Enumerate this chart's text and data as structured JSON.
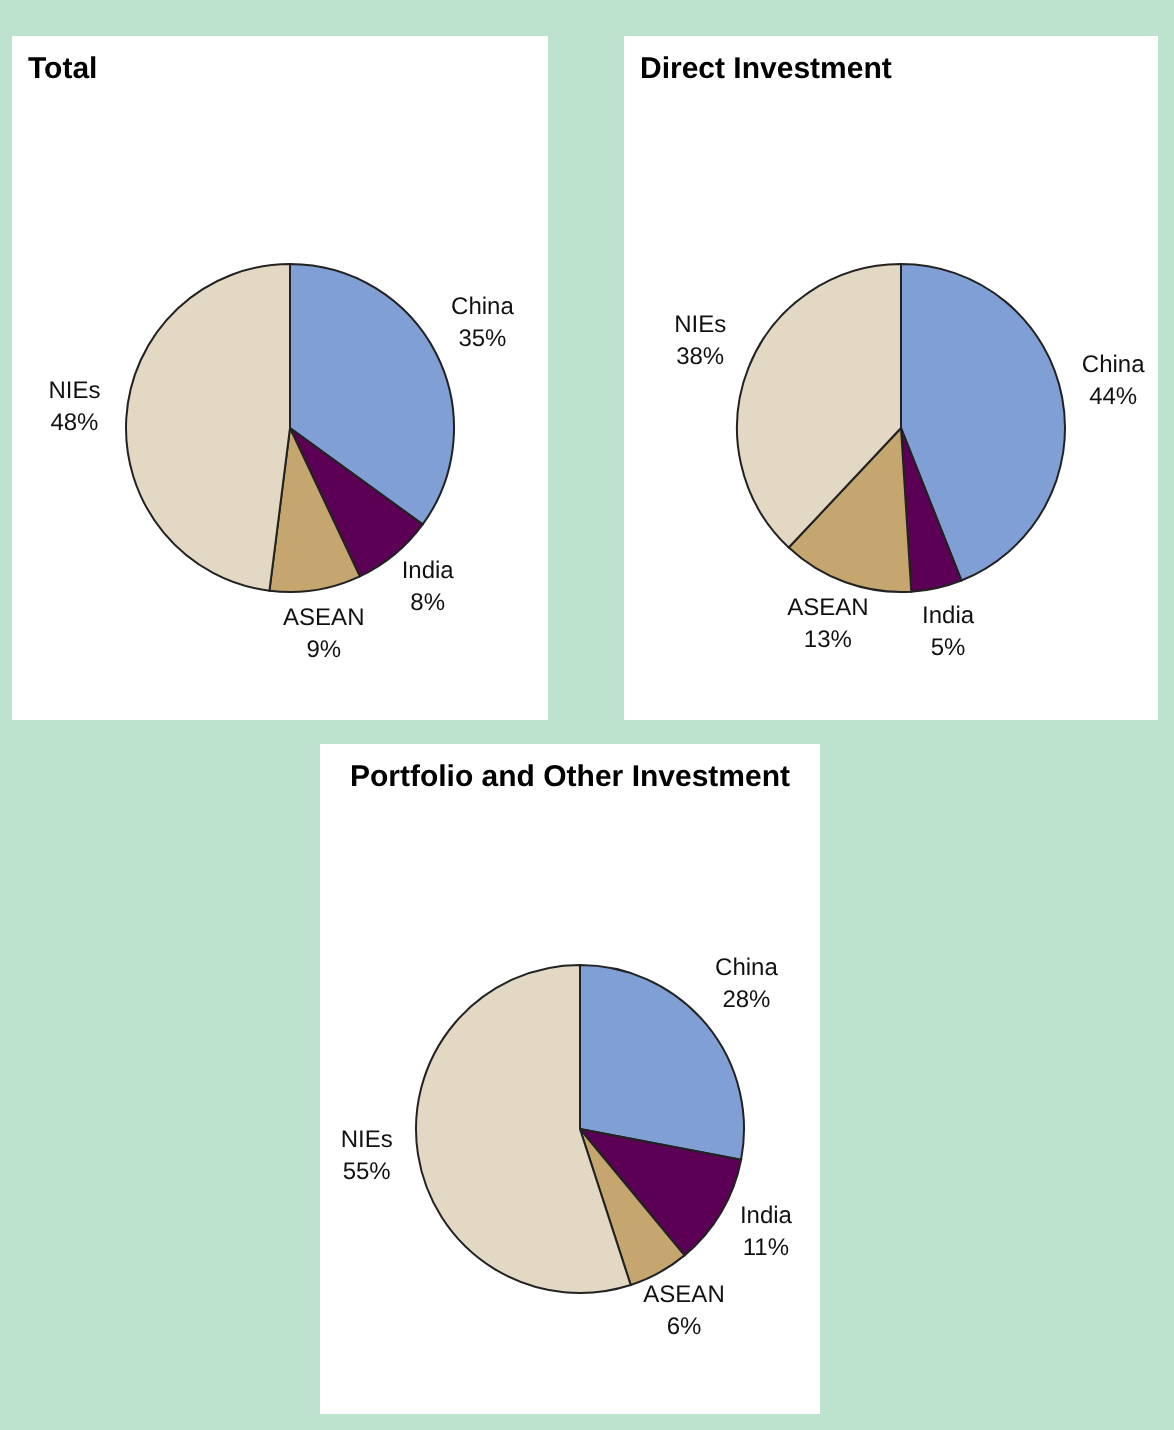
{
  "chart_data": [
    {
      "type": "pie",
      "title": "Total",
      "categories": [
        "China",
        "India",
        "ASEAN",
        "NIEs"
      ],
      "values": [
        35,
        8,
        9,
        48
      ],
      "value_labels": [
        "35%",
        "8%",
        "9%",
        "48%"
      ],
      "colors": [
        "#7f9fd5",
        "#5c0056",
        "#c4a66e",
        "#e2d8c4"
      ]
    },
    {
      "type": "pie",
      "title": "Direct Investment",
      "categories": [
        "China",
        "India",
        "ASEAN",
        "NIEs"
      ],
      "values": [
        44,
        5,
        13,
        38
      ],
      "value_labels": [
        "44%",
        "5%",
        "13%",
        "38%"
      ],
      "colors": [
        "#7f9fd5",
        "#5c0056",
        "#c4a66e",
        "#e2d8c4"
      ]
    },
    {
      "type": "pie",
      "title": "Portfolio and Other Investment",
      "categories": [
        "China",
        "India",
        "ASEAN",
        "NIEs"
      ],
      "values": [
        28,
        11,
        6,
        55
      ],
      "value_labels": [
        "28%",
        "11%",
        "6%",
        "55%"
      ],
      "colors": [
        "#7f9fd5",
        "#5c0056",
        "#c4a66e",
        "#e2d8c4"
      ]
    }
  ]
}
